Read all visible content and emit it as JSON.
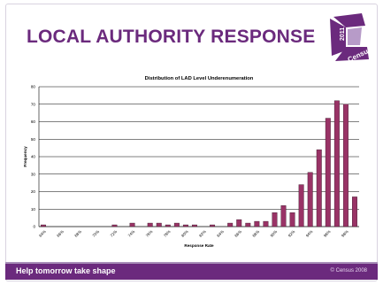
{
  "slide": {
    "title": "LOCAL AUTHORITY RESPONSE",
    "footer_tagline": "Help tomorrow take shape",
    "footer_copyright": "© Census 2008"
  },
  "logo": {
    "year": "2011",
    "word": "Census",
    "colors": {
      "primary": "#6b2a7d",
      "light": "#b79bc8",
      "text": "#ffffff"
    }
  },
  "colors": {
    "title": "#6b2a7d",
    "bar_fill": "#993366",
    "bar_stroke": "#3a1a2a",
    "footer_bg": "#6b2a7d",
    "grid": "#000000"
  },
  "chart_data": {
    "type": "bar",
    "title": "Distribution of LAD Level Underenumeration",
    "xlabel": "Response Rate",
    "ylabel": "Frequency",
    "ylim": [
      0,
      80
    ],
    "yticks": [
      0,
      10,
      20,
      30,
      40,
      50,
      60,
      70,
      80
    ],
    "grid": true,
    "legend": "none",
    "categories": [
      "64%",
      "65%",
      "66%",
      "67%",
      "68%",
      "69%",
      "70%",
      "71%",
      "72%",
      "73%",
      "74%",
      "75%",
      "76%",
      "77%",
      "78%",
      "79%",
      "80%",
      "81%",
      "82%",
      "83%",
      "84%",
      "85%",
      "86%",
      "87%",
      "88%",
      "89%",
      "90%",
      "91%",
      "92%",
      "93%",
      "94%",
      "95%",
      "96%",
      "97%",
      "98%",
      "99%"
    ],
    "tick_labels": [
      "64%",
      "",
      "66%",
      "",
      "68%",
      "",
      "70%",
      "",
      "72%",
      "",
      "74%",
      "",
      "76%",
      "",
      "78%",
      "",
      "80%",
      "",
      "82%",
      "",
      "84%",
      "",
      "86%",
      "",
      "88%",
      "",
      "90%",
      "",
      "92%",
      "",
      "94%",
      "",
      "96%",
      "",
      "98%",
      ""
    ],
    "values": [
      1,
      0,
      0,
      0,
      0,
      0,
      0,
      0,
      1,
      0,
      2,
      0,
      2,
      2,
      1,
      2,
      1,
      1,
      0,
      1,
      0,
      2,
      4,
      2,
      3,
      3,
      8,
      12,
      8,
      24,
      31,
      44,
      62,
      72,
      70,
      17
    ]
  }
}
